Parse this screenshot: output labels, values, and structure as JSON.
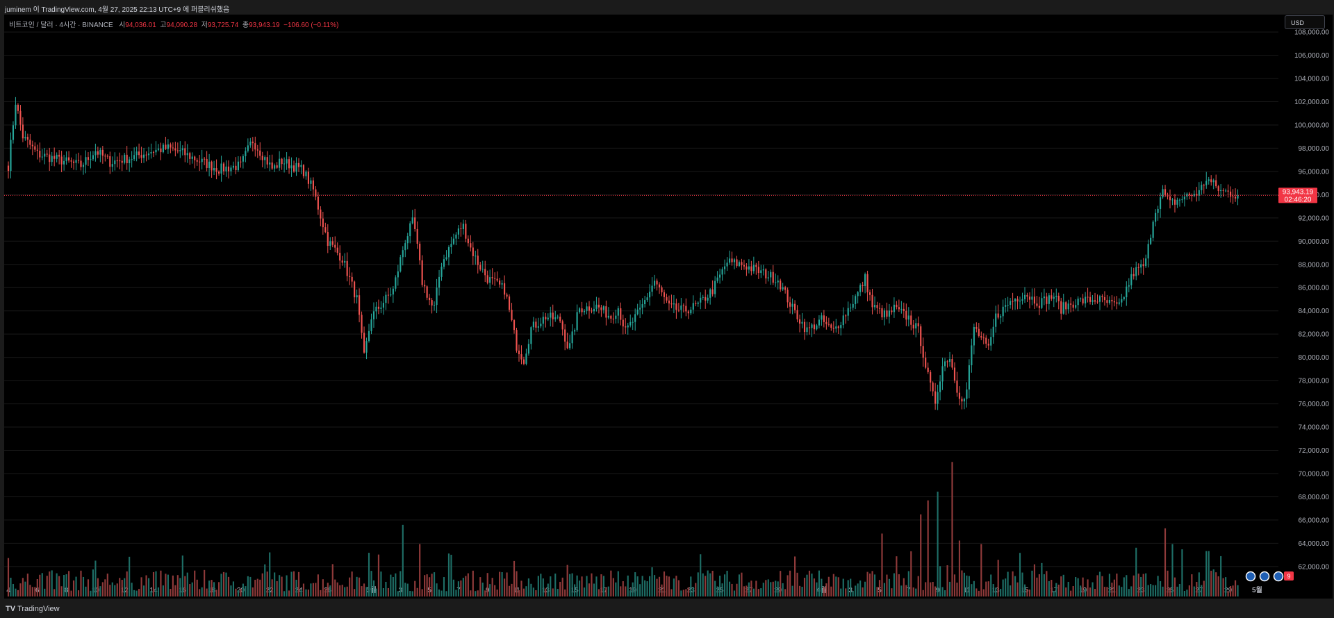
{
  "header": {
    "title": "juminem 이 TradingView.com, 4월 27, 2025 22:13 UTC+9 에 퍼블리쉬했음"
  },
  "footer": {
    "brand": "TradingView"
  },
  "legend": {
    "symbol": "비트코인 / 달러 · 4시간 · BINANCE",
    "open_label": "시",
    "open": "94,036.01",
    "high_label": "고",
    "high": "94,090.28",
    "low_label": "저",
    "low": "93,725.74",
    "close_label": "종",
    "close": "93,943.19",
    "change": "−106.60 (−0.11%)"
  },
  "currency": "USD",
  "price_tag": {
    "price": "93,943.19",
    "countdown": "02:46:20"
  },
  "event_badge": "9",
  "colors": {
    "up": "#26a69a",
    "down": "#ef5350",
    "up_volume": "#1e6e66",
    "down_volume": "#8f3a3a",
    "price_tag": "#f23645",
    "background": "#000000"
  },
  "chart_data": {
    "type": "candlestick",
    "title": "비트코인 / 달러 · 4시간 · BINANCE",
    "ylim": [
      59600,
      109500
    ],
    "y_ticks": [
      108000,
      106000,
      104000,
      102000,
      100000,
      98000,
      96000,
      94000,
      92000,
      90000,
      88000,
      86000,
      84000,
      82000,
      80000,
      78000,
      76000,
      74000,
      72000,
      70000,
      68000,
      66000,
      64000,
      62000
    ],
    "y_tick_labels": [
      "108,000.00",
      "106,000.00",
      "104,000.00",
      "102,000.00",
      "100,000.00",
      "98,000.00",
      "96,000.00",
      "94,000.00",
      "92,000.00",
      "90,000.00",
      "88,000.00",
      "86,000.00",
      "84,000.00",
      "82,000.00",
      "80,000.00",
      "78,000.00",
      "76,000.00",
      "74,000.00",
      "72,000.00",
      "70,000.00",
      "68,000.00",
      "66,000.00",
      "64,000.00",
      "62,000.00"
    ],
    "x_ticks": [
      "4",
      "6",
      "8",
      "10",
      "12",
      "14",
      "16",
      "18",
      "20",
      "22",
      "24",
      "26",
      "3월",
      "3",
      "5",
      "7",
      "9",
      "11",
      "13",
      "15",
      "17",
      "19",
      "21",
      "23",
      "25",
      "27",
      "29",
      "4월",
      "3",
      "5",
      "7",
      "9",
      "11",
      "13",
      "15",
      "17",
      "19",
      "21",
      "23",
      "25",
      "27",
      "29",
      "5월"
    ],
    "x_tick_days": [
      0,
      2,
      4,
      6,
      8,
      10,
      12,
      14,
      16,
      18,
      20,
      22,
      25,
      27,
      29,
      31,
      33,
      35,
      37,
      39,
      41,
      43,
      45,
      47,
      49,
      51,
      53,
      56,
      58,
      60,
      62,
      64,
      66,
      68,
      70,
      72,
      74,
      76,
      78,
      80,
      82,
      84,
      86
    ],
    "candles_per_day": 6,
    "last_price": 93943.19,
    "price_path": [
      [
        0,
        96500
      ],
      [
        0.5,
        102000
      ],
      [
        1,
        99000
      ],
      [
        2,
        97500
      ],
      [
        3.5,
        97000
      ],
      [
        5,
        96500
      ],
      [
        6,
        97800
      ],
      [
        7,
        96800
      ],
      [
        8.5,
        97200
      ],
      [
        10,
        97800
      ],
      [
        11,
        98000
      ],
      [
        12,
        97600
      ],
      [
        13,
        97000
      ],
      [
        14.5,
        96200
      ],
      [
        16,
        96500
      ],
      [
        16.8,
        98700
      ],
      [
        17.4,
        97600
      ],
      [
        18.2,
        96200
      ],
      [
        18.8,
        96900
      ],
      [
        20.3,
        96100
      ],
      [
        21,
        94400
      ],
      [
        22,
        90000
      ],
      [
        23,
        88500
      ],
      [
        24,
        85000
      ],
      [
        24.5,
        80000
      ],
      [
        25,
        83500
      ],
      [
        26.5,
        85800
      ],
      [
        27.3,
        90000
      ],
      [
        27.9,
        91800
      ],
      [
        28.5,
        86500
      ],
      [
        29.3,
        84000
      ],
      [
        29.8,
        88000
      ],
      [
        30.8,
        90500
      ],
      [
        31.3,
        91400
      ],
      [
        31.8,
        89500
      ],
      [
        32.3,
        88200
      ],
      [
        33,
        86800
      ],
      [
        34.2,
        85800
      ],
      [
        35,
        81000
      ],
      [
        35.5,
        79800
      ],
      [
        36,
        82500
      ],
      [
        37,
        83500
      ],
      [
        38,
        83200
      ],
      [
        38.6,
        80600
      ],
      [
        39.3,
        84200
      ],
      [
        40.5,
        84400
      ],
      [
        41.5,
        83500
      ],
      [
        42,
        84300
      ],
      [
        42.5,
        82200
      ],
      [
        43.5,
        84000
      ],
      [
        44.5,
        86600
      ],
      [
        45.5,
        84300
      ],
      [
        46.5,
        84000
      ],
      [
        47.5,
        84500
      ],
      [
        48.5,
        85800
      ],
      [
        49.5,
        88200
      ],
      [
        50.5,
        88000
      ],
      [
        51.5,
        87500
      ],
      [
        53,
        86700
      ],
      [
        54,
        84200
      ],
      [
        55,
        82300
      ],
      [
        56,
        83200
      ],
      [
        56.8,
        82200
      ],
      [
        57.5,
        83500
      ],
      [
        58.5,
        85500
      ],
      [
        59,
        86800
      ],
      [
        59.5,
        84400
      ],
      [
        60.5,
        83500
      ],
      [
        61,
        84200
      ],
      [
        62,
        83400
      ],
      [
        62.7,
        82200
      ],
      [
        63.3,
        78500
      ],
      [
        63.8,
        76000
      ],
      [
        64.3,
        79200
      ],
      [
        64.8,
        80200
      ],
      [
        65.4,
        77000
      ],
      [
        65.9,
        76200
      ],
      [
        66.5,
        82600
      ],
      [
        67.5,
        80600
      ],
      [
        68,
        83500
      ],
      [
        69,
        84800
      ],
      [
        70,
        85500
      ],
      [
        71,
        84700
      ],
      [
        72,
        85300
      ],
      [
        72.5,
        84200
      ],
      [
        73.5,
        84800
      ],
      [
        75,
        85000
      ],
      [
        76.5,
        84300
      ],
      [
        77,
        85900
      ],
      [
        77.5,
        87300
      ],
      [
        78.3,
        88000
      ],
      [
        78.9,
        92400
      ],
      [
        79.5,
        94200
      ],
      [
        80,
        93200
      ],
      [
        81,
        93800
      ],
      [
        82,
        94200
      ],
      [
        82.5,
        95400
      ],
      [
        83.5,
        94300
      ],
      [
        84,
        94200
      ],
      [
        84.7,
        93943
      ]
    ],
    "volume_spikes": [
      [
        0,
        0.22
      ],
      [
        27.2,
        0.41
      ],
      [
        28.3,
        0.3
      ],
      [
        24.8,
        0.25
      ],
      [
        25.5,
        0.24
      ],
      [
        60.2,
        0.36
      ],
      [
        61.2,
        0.23
      ],
      [
        62.8,
        0.47
      ],
      [
        63.3,
        0.55
      ],
      [
        64,
        0.6
      ],
      [
        65,
        0.77
      ],
      [
        65.5,
        0.32
      ],
      [
        67,
        0.3
      ],
      [
        79.7,
        0.39
      ],
      [
        80.2,
        0.3
      ],
      [
        80.8,
        0.27
      ],
      [
        82.6,
        0.26
      ]
    ]
  }
}
